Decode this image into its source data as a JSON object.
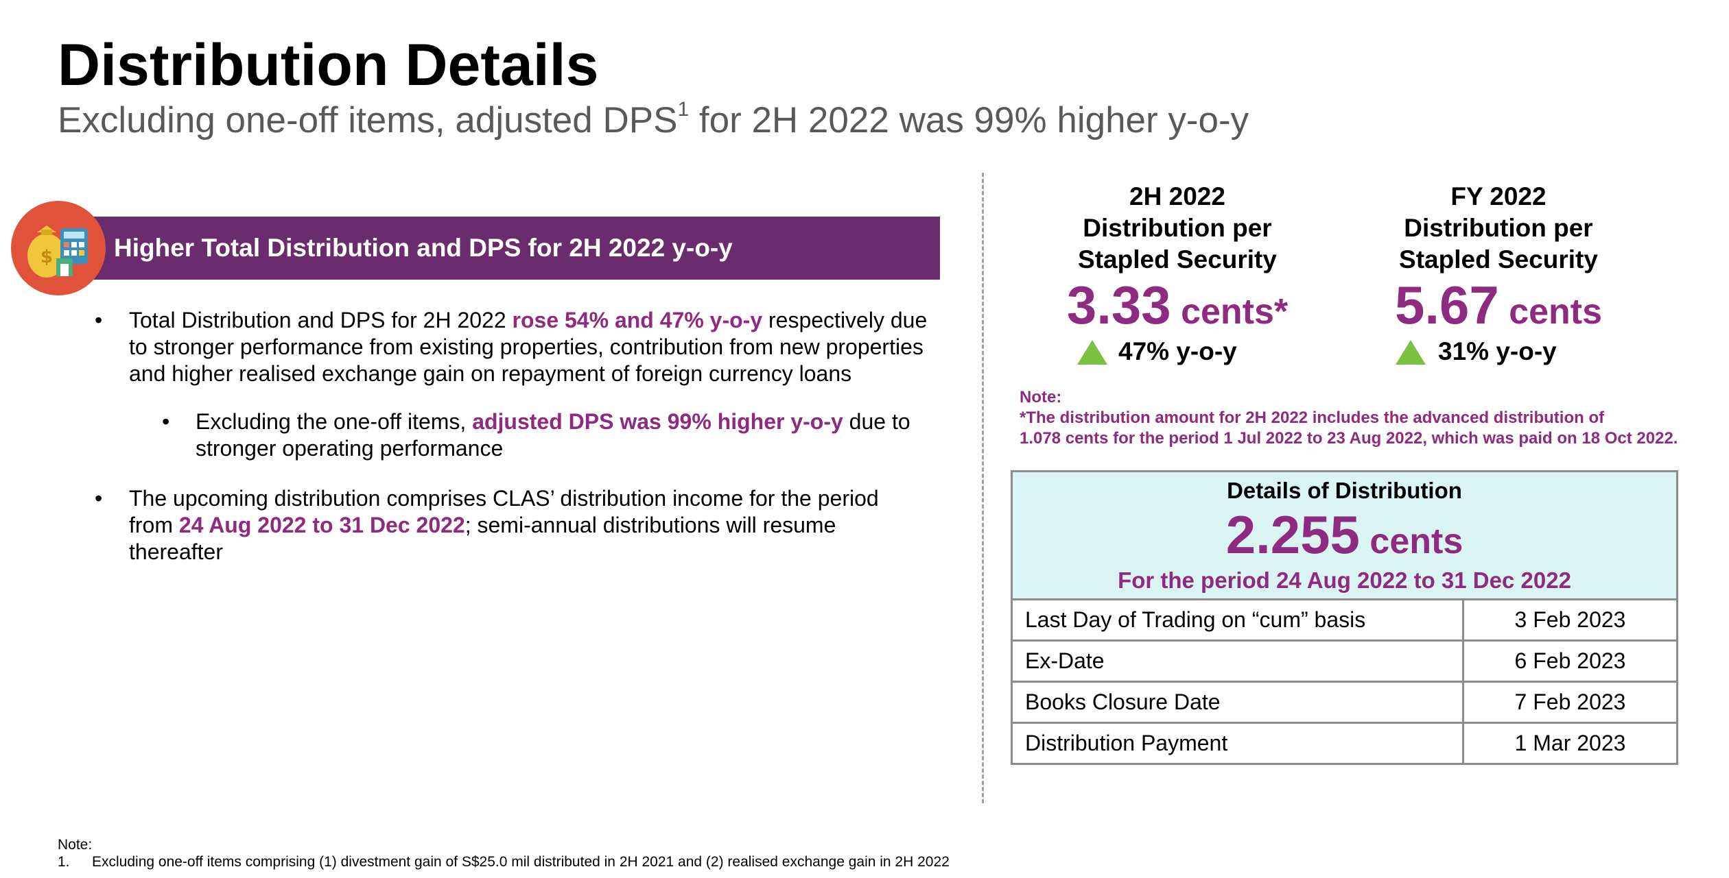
{
  "header": {
    "title": "Distribution Details",
    "subtitle_pre": "Excluding one-off items, adjusted DPS",
    "subtitle_sup": "1",
    "subtitle_post": " for 2H 2022 was 99% higher y-o-y"
  },
  "banner": {
    "text": "Higher Total Distribution and DPS for 2H 2022 y-o-y",
    "icon": "money-bag-calculator-icon"
  },
  "bullets": [
    {
      "pre": "Total Distribution and DPS for 2H 2022 ",
      "highlight": "rose 54% and 47% y-o-y",
      "post": " respectively due to stronger performance from existing properties, contribution from new properties and higher realised exchange gain on repayment of foreign currency loans"
    },
    {
      "pre": "Excluding the one-off items, ",
      "highlight": "adjusted DPS was 99% higher y-o-y",
      "post": " due to stronger operating performance"
    },
    {
      "pre": "The upcoming distribution comprises CLAS’ distribution income for the period from ",
      "highlight": "24 Aug 2022 to 31 Dec 2022",
      "post": "; semi-annual distributions will resume thereafter"
    }
  ],
  "stats": [
    {
      "head_line1": "2H 2022",
      "head_line2": "Distribution per",
      "head_line3": "Stapled Security",
      "value": "3.33",
      "unit": " cents*",
      "yoy": "47% y-o-y"
    },
    {
      "head_line1": "FY 2022",
      "head_line2": "Distribution per",
      "head_line3": "Stapled Security",
      "value": "5.67",
      "unit": " cents",
      "yoy": "31% y-o-y"
    }
  ],
  "note": {
    "label": "Note:",
    "line1": "*The distribution amount for 2H 2022 includes the advanced distribution of",
    "line2": "1.078 cents for the period 1 Jul 2022 to 23 Aug 2022, which was paid on 18 Oct 2022."
  },
  "details": {
    "title": "Details of Distribution",
    "amount": "2.255",
    "unit": " cents",
    "period": "For the period 24 Aug 2022 to 31 Dec 2022",
    "rows": [
      {
        "label": "Last Day of Trading on “cum” basis",
        "value": "3 Feb 2023"
      },
      {
        "label": "Ex-Date",
        "value": "6 Feb 2023"
      },
      {
        "label": "Books Closure Date",
        "value": "7 Feb 2023"
      },
      {
        "label": "Distribution Payment",
        "value": "1 Mar 2023"
      }
    ]
  },
  "footnote": {
    "label": "Note:",
    "number": "1.",
    "text": "Excluding one-off items comprising (1) divestment gain of S$25.0 mil distributed in 2H 2021 and (2) realised exchange gain in 2H 2022"
  },
  "colors": {
    "accent_purple": "#8e2a80",
    "banner_purple": "#6b2c6e",
    "up_arrow_green": "#7cc242",
    "details_bg": "#daf3f3",
    "icon_circle": "#e0533a"
  }
}
